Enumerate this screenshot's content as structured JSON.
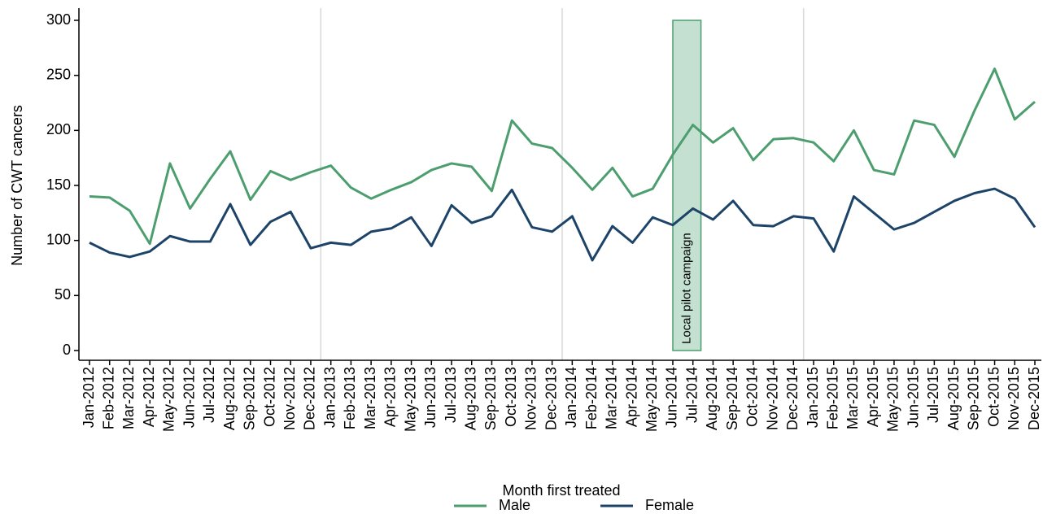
{
  "chart_data": {
    "type": "line",
    "y_label": "Number of CWT cancers",
    "x_label": "Month first treated",
    "categories": [
      "Jan-2012",
      "Feb-2012",
      "Mar-2012",
      "Apr-2012",
      "May-2012",
      "Jun-2012",
      "Jul-2012",
      "Aug-2012",
      "Sep-2012",
      "Oct-2012",
      "Nov-2012",
      "Dec-2012",
      "Jan-2013",
      "Feb-2013",
      "Mar-2013",
      "Apr-2013",
      "May-2013",
      "Jun-2013",
      "Jul-2013",
      "Aug-2013",
      "Sep-2013",
      "Oct-2013",
      "Nov-2013",
      "Dec-2013",
      "Jan-2014",
      "Feb-2014",
      "Mar-2014",
      "Apr-2014",
      "May-2014",
      "Jun-2014",
      "Jul-2014",
      "Aug-2014",
      "Sep-2014",
      "Oct-2014",
      "Nov-2014",
      "Dec-2014",
      "Jan-2015",
      "Feb-2015",
      "Mar-2015",
      "Apr-2015",
      "May-2015",
      "Jun-2015",
      "Jul-2015",
      "Aug-2015",
      "Sep-2015",
      "Oct-2015",
      "Nov-2015",
      "Dec-2015"
    ],
    "series": [
      {
        "name": "Male",
        "color": "#4d9e6f",
        "values": [
          140,
          139,
          127,
          97,
          170,
          129,
          156,
          181,
          137,
          163,
          155,
          162,
          168,
          148,
          138,
          146,
          153,
          164,
          170,
          167,
          145,
          209,
          188,
          184,
          166,
          146,
          166,
          140,
          147,
          178,
          205,
          189,
          202,
          173,
          192,
          193,
          189,
          172,
          200,
          164,
          160,
          209,
          205,
          176,
          218,
          256,
          210,
          226
        ]
      },
      {
        "name": "Female",
        "color": "#1d4468",
        "values": [
          98,
          89,
          85,
          90,
          104,
          99,
          99,
          133,
          96,
          117,
          126,
          93,
          98,
          96,
          108,
          111,
          121,
          95,
          132,
          116,
          122,
          146,
          112,
          108,
          122,
          82,
          113,
          98,
          121,
          114,
          129,
          119,
          136,
          114,
          113,
          122,
          120,
          90,
          140,
          125,
          110,
          116,
          126,
          136,
          143,
          147,
          138,
          112
        ]
      }
    ],
    "annotation": {
      "label": "Local pilot campaign",
      "start": "Jun-2014",
      "end": "Jul-2014",
      "color": "#c3e0d1"
    },
    "ylim": [
      0,
      300
    ],
    "yticks": [
      0,
      50,
      100,
      150,
      200,
      250,
      300
    ]
  }
}
